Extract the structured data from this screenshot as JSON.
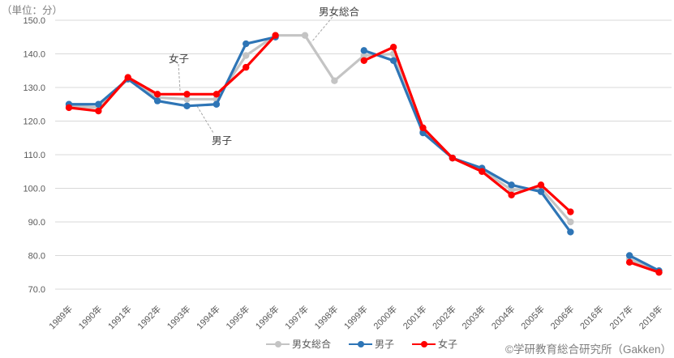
{
  "meta": {
    "unit_label": "（単位：分）",
    "copyright": "©学研教育総合研究所（Gakken）"
  },
  "annotations": [
    {
      "label": "男女総合"
    },
    {
      "label": "女子"
    },
    {
      "label": "男子"
    }
  ],
  "legend": {
    "items": [
      "男女総合",
      "男子",
      "女子"
    ]
  },
  "chart_data": {
    "type": "line",
    "title": "",
    "xlabel": "",
    "ylabel": "（単位：分）",
    "grid": true,
    "legend_position": "bottom",
    "ylim": [
      70,
      150
    ],
    "yticks": [
      150,
      140,
      130,
      120,
      110,
      100,
      90,
      80,
      70
    ],
    "categories": [
      "1989年",
      "1990年",
      "1991年",
      "1992年",
      "1993年",
      "1994年",
      "1995年",
      "1996年",
      "1997年",
      "1998年",
      "1999年",
      "2000年",
      "2001年",
      "2002年",
      "2003年",
      "2004年",
      "2005年",
      "2006年",
      "2016年",
      "2017年",
      "2019年"
    ],
    "series": [
      {
        "name": "男女総合",
        "color": "#C4C4C4",
        "values": [
          124.5,
          124,
          132.5,
          127,
          126.5,
          126.5,
          139.5,
          145.5,
          145.5,
          132,
          139.5,
          140,
          117,
          109,
          105.5,
          99.5,
          100,
          90,
          null,
          79,
          75
        ]
      },
      {
        "name": "男子",
        "color": "#2E75B6",
        "values": [
          125,
          125,
          132.5,
          126,
          124.5,
          125,
          143,
          145,
          null,
          null,
          141,
          138,
          116.5,
          109,
          106,
          101,
          99,
          87,
          null,
          80,
          75.5
        ]
      },
      {
        "name": "女子",
        "color": "#FF0000",
        "values": [
          124,
          123,
          133,
          128,
          128,
          128,
          136,
          145.5,
          null,
          null,
          138,
          142,
          118,
          109,
          105,
          98,
          101,
          93,
          null,
          78,
          75
        ]
      }
    ]
  }
}
